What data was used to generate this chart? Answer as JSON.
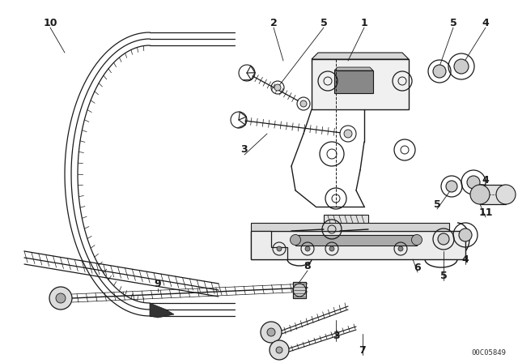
{
  "bg_color": "#ffffff",
  "line_color": "#1a1a1a",
  "catalog_number": "00C05849",
  "fig_w": 6.4,
  "fig_h": 4.48,
  "dpi": 100
}
